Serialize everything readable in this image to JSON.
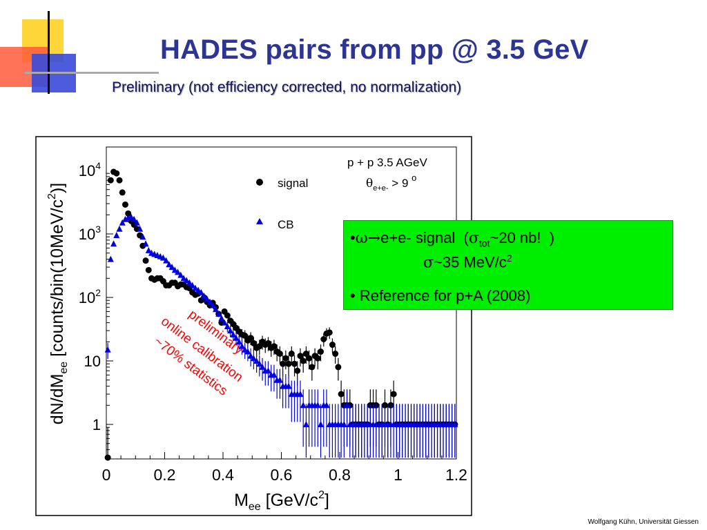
{
  "slide": {
    "title": "HADES pairs from pp @ 3.5 GeV",
    "subtitle": "Preliminary (not  efficiency corrected, no normalization)",
    "footer": "Wolfgang Kühn, Universität Giessen",
    "title_color": "#2d3593",
    "accent_line_color": "#aaaaaa"
  },
  "infobox": {
    "background": "#00ee00",
    "line1": "•ω→e+e- signal  (σtot~20 nb!  )",
    "line2": "σ~35 MeV/c2",
    "line3": "• Reference for p+A  (2008)"
  },
  "chart_data": {
    "type": "scatter",
    "title": "",
    "xlabel": "Mee [GeV/c2]",
    "ylabel": "dN/dMee [counts/bin(10MeV/c2)]",
    "xlim": [
      0,
      1.2
    ],
    "ylim": [
      0.3,
      25000
    ],
    "y_scale": "log",
    "x_ticks": [
      "0",
      "0.2",
      "0.4",
      "0.6",
      "0.8",
      "1",
      "1.2"
    ],
    "y_ticks": [
      "1",
      "10",
      "10^2",
      "10^3",
      "10^4"
    ],
    "grid": false,
    "legend_position": "top-center",
    "legend": [
      "signal",
      "CB"
    ],
    "header_lines": [
      "p + p  3.5 AGeV",
      "θe+e- > 9 o"
    ],
    "annotations": [
      "preliminary",
      "online calibration",
      "~70% statistics"
    ],
    "annotation_color": "#ff0000",
    "series": [
      {
        "name": "signal",
        "marker": "circle",
        "color": "#000000",
        "points": [
          [
            0.005,
            0.3
          ],
          [
            0.015,
            7000
          ],
          [
            0.025,
            9500
          ],
          [
            0.035,
            9000
          ],
          [
            0.045,
            7000
          ],
          [
            0.055,
            4500
          ],
          [
            0.065,
            2900
          ],
          [
            0.075,
            2100
          ],
          [
            0.085,
            1600
          ],
          [
            0.095,
            1400
          ],
          [
            0.105,
            1200
          ],
          [
            0.115,
            950
          ],
          [
            0.125,
            650
          ],
          [
            0.135,
            380
          ],
          [
            0.145,
            270
          ],
          [
            0.155,
            200
          ],
          [
            0.165,
            190
          ],
          [
            0.175,
            200
          ],
          [
            0.185,
            200
          ],
          [
            0.195,
            180
          ],
          [
            0.205,
            155
          ],
          [
            0.215,
            155
          ],
          [
            0.225,
            170
          ],
          [
            0.235,
            170
          ],
          [
            0.245,
            150
          ],
          [
            0.255,
            160
          ],
          [
            0.265,
            160
          ],
          [
            0.275,
            145
          ],
          [
            0.285,
            140
          ],
          [
            0.295,
            120
          ],
          [
            0.305,
            110
          ],
          [
            0.315,
            115
          ],
          [
            0.325,
            90
          ],
          [
            0.335,
            100
          ],
          [
            0.345,
            85
          ],
          [
            0.355,
            75
          ],
          [
            0.365,
            82
          ],
          [
            0.375,
            70
          ],
          [
            0.385,
            55
          ],
          [
            0.395,
            40
          ],
          [
            0.405,
            60
          ],
          [
            0.415,
            52
          ],
          [
            0.425,
            43
          ],
          [
            0.435,
            38
          ],
          [
            0.445,
            33
          ],
          [
            0.455,
            29
          ],
          [
            0.465,
            26
          ],
          [
            0.475,
            25
          ],
          [
            0.485,
            21
          ],
          [
            0.495,
            23
          ],
          [
            0.505,
            19
          ],
          [
            0.515,
            16
          ],
          [
            0.525,
            17
          ],
          [
            0.535,
            20
          ],
          [
            0.545,
            18
          ],
          [
            0.555,
            19
          ],
          [
            0.565,
            16
          ],
          [
            0.575,
            17
          ],
          [
            0.585,
            14
          ],
          [
            0.595,
            13
          ],
          [
            0.605,
            9
          ],
          [
            0.615,
            11
          ],
          [
            0.625,
            9
          ],
          [
            0.635,
            13
          ],
          [
            0.645,
            9
          ],
          [
            0.655,
            7
          ],
          [
            0.665,
            12
          ],
          [
            0.675,
            10
          ],
          [
            0.685,
            13
          ],
          [
            0.695,
            11
          ],
          [
            0.705,
            8
          ],
          [
            0.715,
            12
          ],
          [
            0.725,
            11
          ],
          [
            0.735,
            14
          ],
          [
            0.745,
            22
          ],
          [
            0.755,
            27
          ],
          [
            0.765,
            28
          ],
          [
            0.775,
            18
          ],
          [
            0.785,
            13
          ],
          [
            0.795,
            8
          ],
          [
            0.805,
            3
          ],
          [
            0.815,
            2
          ],
          [
            0.825,
            2
          ],
          [
            0.835,
            2
          ],
          [
            0.845,
            1
          ],
          [
            0.855,
            1
          ],
          [
            0.865,
            1
          ],
          [
            0.875,
            1
          ],
          [
            0.885,
            1
          ],
          [
            0.895,
            1
          ],
          [
            0.905,
            2
          ],
          [
            0.915,
            2
          ],
          [
            0.925,
            2
          ],
          [
            0.935,
            1
          ],
          [
            0.945,
            1
          ],
          [
            0.955,
            2
          ],
          [
            0.965,
            1
          ],
          [
            0.975,
            2
          ],
          [
            0.985,
            3
          ],
          [
            0.995,
            1
          ],
          [
            1.005,
            1
          ],
          [
            1.015,
            1
          ],
          [
            1.025,
            1
          ],
          [
            1.035,
            1
          ],
          [
            1.045,
            1
          ],
          [
            1.055,
            1
          ],
          [
            1.065,
            1
          ],
          [
            1.075,
            1
          ],
          [
            1.085,
            1
          ],
          [
            1.095,
            1
          ],
          [
            1.105,
            1
          ],
          [
            1.115,
            1
          ],
          [
            1.125,
            1
          ],
          [
            1.135,
            1
          ],
          [
            1.145,
            1
          ],
          [
            1.155,
            1
          ],
          [
            1.165,
            1
          ],
          [
            1.175,
            1
          ],
          [
            1.185,
            1
          ],
          [
            1.195,
            1
          ]
        ]
      },
      {
        "name": "CB",
        "marker": "triangle",
        "color": "#0000dd",
        "points": [
          [
            0.005,
            15
          ],
          [
            0.015,
            400
          ],
          [
            0.025,
            700
          ],
          [
            0.035,
            950
          ],
          [
            0.045,
            1200
          ],
          [
            0.055,
            1500
          ],
          [
            0.065,
            1700
          ],
          [
            0.075,
            1800
          ],
          [
            0.085,
            1850
          ],
          [
            0.095,
            1700
          ],
          [
            0.105,
            1500
          ],
          [
            0.115,
            1200
          ],
          [
            0.125,
            900
          ],
          [
            0.135,
            700
          ],
          [
            0.145,
            550
          ],
          [
            0.155,
            500
          ],
          [
            0.165,
            480
          ],
          [
            0.175,
            460
          ],
          [
            0.185,
            440
          ],
          [
            0.195,
            420
          ],
          [
            0.205,
            380
          ],
          [
            0.215,
            330
          ],
          [
            0.225,
            300
          ],
          [
            0.235,
            270
          ],
          [
            0.245,
            250
          ],
          [
            0.255,
            225
          ],
          [
            0.265,
            200
          ],
          [
            0.275,
            185
          ],
          [
            0.285,
            170
          ],
          [
            0.295,
            155
          ],
          [
            0.305,
            140
          ],
          [
            0.315,
            130
          ],
          [
            0.325,
            120
          ],
          [
            0.335,
            105
          ],
          [
            0.345,
            95
          ],
          [
            0.355,
            85
          ],
          [
            0.365,
            75
          ],
          [
            0.375,
            65
          ],
          [
            0.385,
            55
          ],
          [
            0.395,
            47
          ],
          [
            0.405,
            40
          ],
          [
            0.415,
            35
          ],
          [
            0.425,
            30
          ],
          [
            0.435,
            26
          ],
          [
            0.445,
            23
          ],
          [
            0.455,
            20
          ],
          [
            0.465,
            17
          ],
          [
            0.475,
            15
          ],
          [
            0.485,
            14
          ],
          [
            0.495,
            12
          ],
          [
            0.505,
            11
          ],
          [
            0.515,
            10
          ],
          [
            0.525,
            9
          ],
          [
            0.535,
            8
          ],
          [
            0.545,
            7
          ],
          [
            0.555,
            7
          ],
          [
            0.565,
            6
          ],
          [
            0.575,
            6
          ],
          [
            0.585,
            5
          ],
          [
            0.595,
            5
          ],
          [
            0.605,
            4
          ],
          [
            0.615,
            4
          ],
          [
            0.625,
            4
          ],
          [
            0.635,
            3
          ],
          [
            0.645,
            3
          ],
          [
            0.655,
            3
          ],
          [
            0.665,
            3
          ],
          [
            0.675,
            2
          ],
          [
            0.685,
            1
          ],
          [
            0.695,
            2
          ],
          [
            0.705,
            2
          ],
          [
            0.715,
            2
          ],
          [
            0.725,
            2
          ],
          [
            0.735,
            1
          ],
          [
            0.745,
            2
          ],
          [
            0.755,
            2
          ],
          [
            0.765,
            1
          ],
          [
            0.775,
            1
          ],
          [
            0.785,
            1
          ],
          [
            0.795,
            1
          ],
          [
            0.805,
            1
          ],
          [
            0.815,
            1
          ],
          [
            0.825,
            2
          ],
          [
            0.835,
            1
          ],
          [
            0.845,
            1
          ],
          [
            0.855,
            1
          ],
          [
            0.865,
            1
          ],
          [
            0.875,
            1
          ],
          [
            0.885,
            1
          ],
          [
            0.895,
            1
          ],
          [
            0.905,
            1
          ],
          [
            0.915,
            1
          ],
          [
            0.925,
            1
          ],
          [
            0.935,
            1
          ],
          [
            0.945,
            1
          ],
          [
            0.955,
            1
          ],
          [
            0.965,
            1
          ],
          [
            0.975,
            1
          ],
          [
            0.985,
            1
          ],
          [
            0.995,
            1
          ],
          [
            1.005,
            1
          ],
          [
            1.015,
            1
          ],
          [
            1.025,
            1
          ],
          [
            1.035,
            1
          ],
          [
            1.045,
            1
          ],
          [
            1.055,
            1
          ],
          [
            1.065,
            1
          ],
          [
            1.075,
            1
          ],
          [
            1.085,
            1
          ],
          [
            1.095,
            1
          ],
          [
            1.105,
            1
          ],
          [
            1.115,
            1
          ],
          [
            1.125,
            1
          ],
          [
            1.135,
            1
          ],
          [
            1.145,
            1
          ],
          [
            1.155,
            1
          ],
          [
            1.165,
            1
          ],
          [
            1.175,
            1
          ],
          [
            1.185,
            1
          ],
          [
            1.195,
            1
          ]
        ]
      }
    ]
  }
}
